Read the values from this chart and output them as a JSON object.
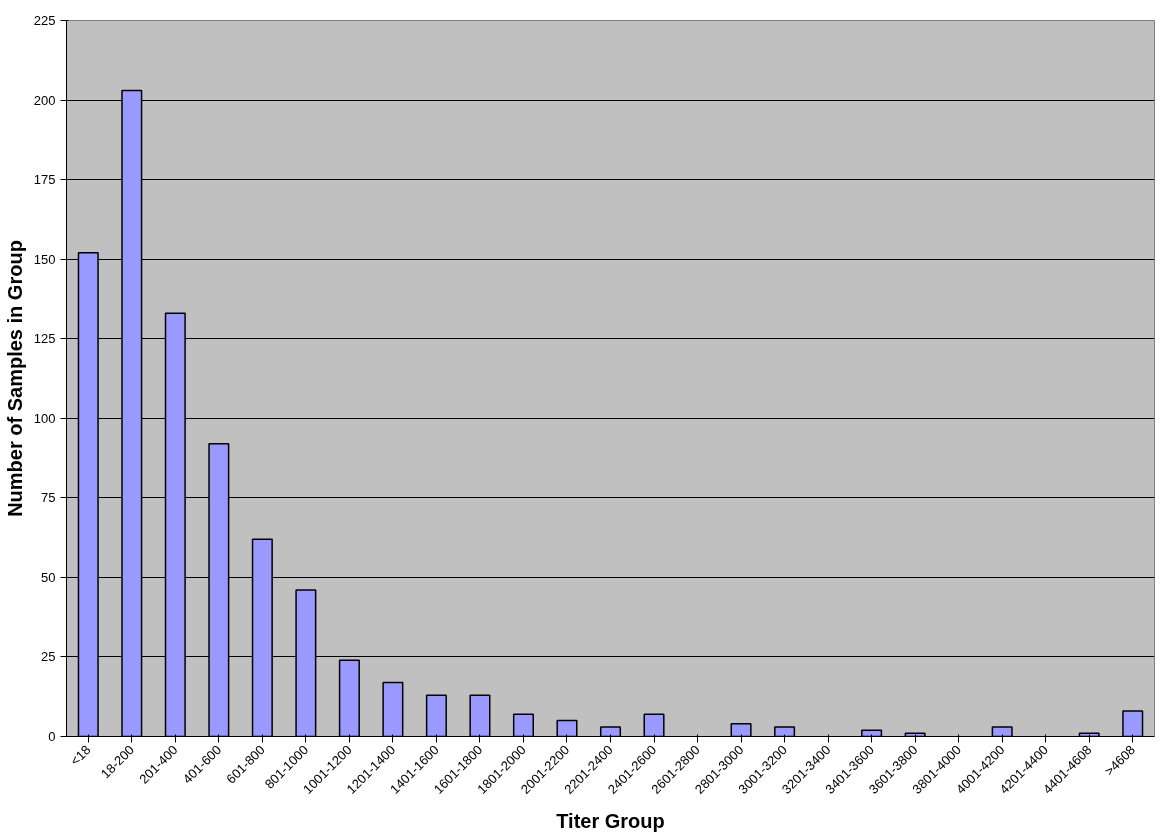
{
  "chart_data": {
    "type": "bar",
    "xlabel": "Titer Group",
    "ylabel": "Number of Samples in Group",
    "categories": [
      "<18",
      "18-200",
      "201-400",
      "401-600",
      "601-800",
      "801-1000",
      "1001-1200",
      "1201-1400",
      "1401-1600",
      "1601-1800",
      "1801-2000",
      "2001-2200",
      "2201-2400",
      "2401-2600",
      "2601-2800",
      "2801-3000",
      "3001-3200",
      "3201-3400",
      "3401-3600",
      "3601-3800",
      "3801-4000",
      "4001-4200",
      "4201-4400",
      "4401-4608",
      ">4608"
    ],
    "values": [
      152,
      203,
      133,
      92,
      62,
      46,
      24,
      17,
      13,
      13,
      7,
      5,
      3,
      7,
      0,
      4,
      3,
      0,
      2,
      1,
      0,
      3,
      0,
      1,
      8
    ],
    "color": "#9999ff",
    "ylim": [
      0,
      225
    ],
    "yticks": [
      0,
      25,
      50,
      75,
      100,
      125,
      150,
      175,
      200,
      225
    ],
    "grid": "y"
  }
}
